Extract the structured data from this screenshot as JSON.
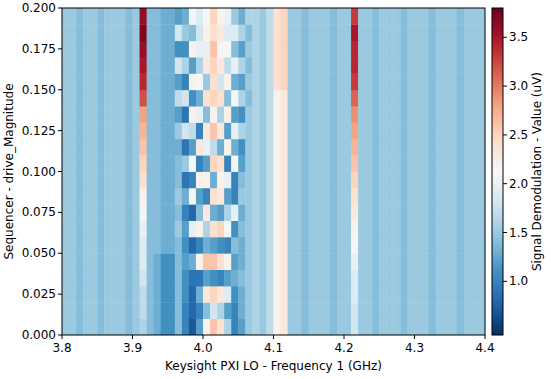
{
  "chart_data": {
    "type": "heatmap",
    "x_label": "Keysight PXI LO - Frequency 1 (GHz)",
    "y_label": "Sequencer - drive_Magnitude",
    "xlim": [
      3.8,
      4.4
    ],
    "ylim": [
      0,
      0.2
    ],
    "xticks": [
      3.8,
      3.9,
      {
        "value": 4,
        "label": "4.0"
      },
      4.1,
      4.2,
      4.3,
      4.4
    ],
    "yticks": [
      {
        "value": 0,
        "label": "0.000"
      },
      {
        "value": 0.025,
        "label": "0.025"
      },
      {
        "value": 0.05,
        "label": "0.050"
      },
      {
        "value": 0.075,
        "label": "0.075"
      },
      {
        "value": 0.1,
        "label": "0.100"
      },
      {
        "value": 0.125,
        "label": "0.125"
      },
      {
        "value": 0.15,
        "label": "0.150"
      },
      {
        "value": 0.175,
        "label": "0.175"
      },
      {
        "value": 0.2,
        "label": "0.200"
      }
    ],
    "x": [
      3.805,
      3.815,
      3.825,
      3.835,
      3.845,
      3.855,
      3.865,
      3.875,
      3.885,
      3.895,
      3.905,
      3.915,
      3.925,
      3.935,
      3.945,
      3.955,
      3.965,
      3.975,
      3.985,
      3.995,
      4.005,
      4.015,
      4.025,
      4.035,
      4.045,
      4.055,
      4.065,
      4.075,
      4.085,
      4.095,
      4.105,
      4.115,
      4.125,
      4.135,
      4.145,
      4.155,
      4.165,
      4.175,
      4.185,
      4.195,
      4.205,
      4.215,
      4.225,
      4.235,
      4.245,
      4.255,
      4.265,
      4.275,
      4.285,
      4.295,
      4.305,
      4.315,
      4.325,
      4.335,
      4.345,
      4.355,
      4.365,
      4.375,
      4.385,
      4.395
    ],
    "y": [
      0.005,
      0.015,
      0.025,
      0.035,
      0.045,
      0.055,
      0.065,
      0.075,
      0.085,
      0.095,
      0.105,
      0.115,
      0.125,
      0.135,
      0.145,
      0.155,
      0.165,
      0.175,
      0.185,
      0.195
    ],
    "values": [
      [
        1.5,
        1.5,
        1.4,
        1.5,
        1.5,
        1.4,
        1.5,
        1.5,
        1.5,
        1.4,
        1.5,
        1.6,
        1.4,
        1.3,
        1.1,
        1.1,
        1.4,
        1.0,
        0.7,
        1.2,
        2.2,
        2.6,
        2.4,
        1.6,
        1.0,
        1.2,
        1.5,
        1.6,
        1.5,
        1.7,
        2.2,
        2.3,
        1.5,
        1.5,
        1.4,
        1.5,
        1.5,
        1.5,
        1.4,
        1.5,
        1.5,
        1.8,
        1.5,
        1.5,
        1.4,
        1.5,
        1.5,
        1.5,
        1.4,
        1.5,
        1.5,
        1.5,
        1.4,
        1.5,
        1.5,
        1.5,
        1.4,
        1.5,
        1.5,
        1.5
      ],
      [
        1.5,
        1.5,
        1.4,
        1.5,
        1.5,
        1.4,
        1.5,
        1.5,
        1.5,
        1.4,
        1.5,
        1.7,
        1.4,
        1.3,
        1.1,
        1.1,
        1.4,
        1.0,
        0.8,
        1.0,
        1.4,
        1.8,
        1.6,
        1.2,
        1.0,
        1.3,
        1.5,
        1.6,
        1.5,
        1.7,
        2.2,
        2.3,
        1.5,
        1.5,
        1.4,
        1.5,
        1.5,
        1.5,
        1.4,
        1.5,
        1.5,
        1.8,
        1.5,
        1.5,
        1.4,
        1.5,
        1.5,
        1.5,
        1.4,
        1.5,
        1.5,
        1.5,
        1.4,
        1.5,
        1.5,
        1.5,
        1.4,
        1.5,
        1.5,
        1.5
      ],
      [
        1.5,
        1.5,
        1.4,
        1.5,
        1.5,
        1.4,
        1.5,
        1.5,
        1.5,
        1.4,
        1.5,
        1.7,
        1.4,
        1.3,
        1.1,
        1.1,
        1.4,
        1.1,
        0.8,
        1.3,
        2.3,
        2.5,
        2.3,
        1.9,
        1.1,
        1.3,
        1.5,
        1.6,
        1.5,
        1.7,
        2.2,
        2.3,
        1.5,
        1.5,
        1.4,
        1.5,
        1.5,
        1.5,
        1.4,
        1.5,
        1.5,
        1.9,
        1.5,
        1.5,
        1.4,
        1.5,
        1.5,
        1.5,
        1.4,
        1.5,
        1.5,
        1.5,
        1.4,
        1.5,
        1.5,
        1.5,
        1.4,
        1.5,
        1.5,
        1.5
      ],
      [
        1.5,
        1.5,
        1.4,
        1.5,
        1.5,
        1.4,
        1.5,
        1.5,
        1.5,
        1.4,
        1.5,
        1.8,
        1.4,
        1.3,
        1.1,
        1.1,
        1.4,
        1.1,
        0.9,
        0.9,
        1.2,
        1.1,
        1.0,
        1.2,
        1.3,
        1.4,
        1.5,
        1.6,
        1.5,
        1.7,
        2.2,
        2.3,
        1.5,
        1.5,
        1.4,
        1.5,
        1.5,
        1.5,
        1.4,
        1.5,
        1.5,
        1.9,
        1.5,
        1.5,
        1.4,
        1.5,
        1.5,
        1.5,
        1.4,
        1.5,
        1.5,
        1.5,
        1.4,
        1.5,
        1.5,
        1.5,
        1.4,
        1.5,
        1.5,
        1.5
      ],
      [
        1.5,
        1.5,
        1.4,
        1.5,
        1.5,
        1.4,
        1.5,
        1.5,
        1.5,
        1.4,
        1.5,
        1.9,
        1.4,
        1.3,
        1.1,
        1.1,
        1.4,
        1.2,
        1.3,
        2.2,
        2.6,
        2.6,
        2.4,
        2.2,
        1.2,
        1.3,
        1.5,
        1.6,
        1.5,
        1.7,
        2.2,
        2.3,
        1.5,
        1.5,
        1.4,
        1.5,
        1.5,
        1.5,
        1.4,
        1.5,
        1.5,
        2.0,
        1.5,
        1.5,
        1.4,
        1.5,
        1.5,
        1.5,
        1.4,
        1.5,
        1.5,
        1.5,
        1.4,
        1.5,
        1.5,
        1.5,
        1.4,
        1.5,
        1.5,
        1.5
      ],
      [
        1.5,
        1.5,
        1.4,
        1.5,
        1.5,
        1.4,
        1.5,
        1.5,
        1.5,
        1.4,
        1.5,
        1.9,
        1.4,
        1.4,
        1.3,
        1.3,
        1.4,
        1.1,
        0.8,
        1.0,
        1.3,
        1.2,
        1.1,
        1.0,
        1.4,
        1.3,
        1.5,
        1.6,
        1.5,
        1.7,
        2.2,
        2.3,
        1.5,
        1.5,
        1.4,
        1.5,
        1.5,
        1.5,
        1.4,
        1.5,
        1.5,
        2.1,
        1.5,
        1.5,
        1.4,
        1.5,
        1.5,
        1.5,
        1.4,
        1.5,
        1.5,
        1.5,
        1.4,
        1.5,
        1.5,
        1.5,
        1.4,
        1.5,
        1.5,
        1.5
      ],
      [
        1.5,
        1.5,
        1.4,
        1.5,
        1.5,
        1.4,
        1.5,
        1.5,
        1.5,
        1.4,
        1.5,
        2.0,
        1.4,
        1.4,
        1.3,
        1.3,
        1.5,
        1.2,
        2.0,
        2.2,
        1.6,
        2.4,
        2.5,
        2.1,
        1.1,
        1.4,
        1.5,
        1.6,
        1.5,
        1.7,
        2.2,
        2.3,
        1.5,
        1.5,
        1.4,
        1.5,
        1.5,
        1.5,
        1.4,
        1.5,
        1.5,
        2.2,
        1.5,
        1.5,
        1.4,
        1.5,
        1.5,
        1.5,
        1.4,
        1.5,
        1.5,
        1.5,
        1.4,
        1.5,
        1.5,
        1.5,
        1.4,
        1.5,
        1.5,
        1.5
      ],
      [
        1.5,
        1.5,
        1.4,
        1.5,
        1.5,
        1.4,
        1.5,
        1.5,
        1.5,
        1.4,
        1.5,
        2.1,
        1.4,
        1.4,
        1.3,
        1.3,
        1.4,
        1.0,
        0.8,
        1.4,
        2.3,
        1.3,
        1.2,
        1.6,
        2.0,
        1.3,
        1.5,
        1.6,
        1.5,
        1.7,
        2.2,
        2.3,
        1.5,
        1.5,
        1.4,
        1.5,
        1.5,
        1.5,
        1.4,
        1.5,
        1.5,
        2.3,
        1.5,
        1.5,
        1.4,
        1.5,
        1.5,
        1.5,
        1.4,
        1.5,
        1.5,
        1.5,
        1.4,
        1.5,
        1.5,
        1.5,
        1.4,
        1.5,
        1.5,
        1.5
      ],
      [
        1.5,
        1.5,
        1.4,
        1.5,
        1.5,
        1.4,
        1.5,
        1.5,
        1.5,
        1.4,
        1.5,
        2.2,
        1.4,
        1.4,
        1.3,
        1.3,
        1.5,
        1.3,
        2.1,
        1.2,
        1.0,
        2.4,
        2.3,
        1.2,
        1.0,
        1.5,
        1.5,
        1.6,
        1.5,
        1.7,
        2.2,
        2.3,
        1.5,
        1.5,
        1.4,
        1.5,
        1.5,
        1.5,
        1.4,
        1.5,
        1.5,
        2.4,
        1.5,
        1.5,
        1.4,
        1.5,
        1.5,
        1.5,
        1.4,
        1.5,
        1.5,
        1.5,
        1.4,
        1.5,
        1.5,
        1.5,
        1.4,
        1.5,
        1.5,
        1.5
      ],
      [
        1.5,
        1.5,
        1.4,
        1.5,
        1.5,
        1.4,
        1.5,
        1.5,
        1.5,
        1.4,
        1.5,
        2.4,
        1.4,
        1.4,
        1.3,
        1.3,
        1.4,
        0.9,
        1.0,
        2.2,
        2.2,
        1.3,
        2.2,
        2.0,
        1.0,
        1.4,
        1.5,
        1.6,
        1.5,
        1.7,
        2.2,
        2.3,
        1.5,
        1.5,
        1.4,
        1.5,
        1.5,
        1.5,
        1.4,
        1.5,
        1.5,
        2.5,
        1.5,
        1.5,
        1.4,
        1.5,
        1.5,
        1.5,
        1.4,
        1.5,
        1.5,
        1.5,
        1.4,
        1.5,
        1.5,
        1.5,
        1.4,
        1.5,
        1.5,
        1.5
      ],
      [
        1.5,
        1.5,
        1.4,
        1.5,
        1.5,
        1.4,
        1.5,
        1.5,
        1.5,
        1.4,
        1.5,
        2.5,
        1.4,
        1.4,
        1.3,
        1.3,
        1.4,
        1.5,
        2.1,
        1.0,
        1.2,
        2.5,
        2.4,
        1.0,
        2.1,
        1.2,
        1.5,
        1.6,
        1.5,
        1.7,
        2.2,
        2.3,
        1.5,
        1.5,
        1.4,
        1.5,
        1.5,
        1.5,
        1.4,
        1.5,
        1.5,
        2.6,
        1.5,
        1.5,
        1.4,
        1.5,
        1.5,
        1.5,
        1.4,
        1.5,
        1.5,
        1.5,
        1.4,
        1.5,
        1.5,
        1.5,
        1.4,
        1.5,
        1.5,
        1.5
      ],
      [
        1.5,
        1.5,
        1.4,
        1.5,
        1.5,
        1.4,
        1.5,
        1.5,
        1.5,
        1.4,
        1.5,
        2.6,
        1.4,
        1.4,
        1.3,
        1.3,
        1.3,
        0.9,
        1.2,
        2.3,
        2.0,
        1.7,
        1.3,
        2.2,
        1.3,
        1.1,
        1.5,
        1.6,
        1.5,
        1.7,
        2.2,
        2.3,
        1.5,
        1.5,
        1.4,
        1.5,
        1.5,
        1.5,
        1.4,
        1.5,
        1.5,
        2.7,
        1.5,
        1.5,
        1.4,
        1.5,
        1.5,
        1.5,
        1.4,
        1.5,
        1.5,
        1.5,
        1.4,
        1.5,
        1.5,
        1.5,
        1.4,
        1.5,
        1.5,
        1.5
      ],
      [
        1.5,
        1.5,
        1.4,
        1.5,
        1.5,
        1.4,
        1.5,
        1.5,
        1.5,
        1.4,
        1.5,
        2.7,
        1.4,
        1.4,
        1.3,
        1.3,
        1.5,
        1.8,
        1.7,
        1.0,
        2.3,
        2.6,
        2.3,
        1.2,
        2.0,
        1.6,
        1.5,
        1.6,
        1.5,
        1.7,
        2.2,
        2.3,
        1.5,
        1.5,
        1.4,
        1.5,
        1.5,
        1.5,
        1.4,
        1.5,
        1.5,
        2.8,
        1.5,
        1.5,
        1.4,
        1.5,
        1.5,
        1.5,
        1.4,
        1.5,
        1.5,
        1.5,
        1.4,
        1.5,
        1.5,
        1.5,
        1.4,
        1.5,
        1.5,
        1.5
      ],
      [
        1.5,
        1.5,
        1.4,
        1.5,
        1.5,
        1.4,
        1.5,
        1.5,
        1.5,
        1.4,
        1.5,
        2.8,
        1.4,
        1.4,
        1.3,
        1.3,
        1.2,
        0.9,
        2.2,
        2.0,
        1.4,
        2.2,
        1.6,
        2.2,
        1.2,
        1.1,
        1.5,
        1.6,
        1.5,
        1.7,
        2.2,
        2.3,
        1.5,
        1.5,
        1.4,
        1.5,
        1.5,
        1.5,
        1.4,
        1.5,
        1.5,
        2.9,
        1.5,
        1.5,
        1.4,
        1.5,
        1.5,
        1.5,
        1.4,
        1.5,
        1.5,
        1.5,
        1.4,
        1.5,
        1.5,
        1.5,
        1.4,
        1.5,
        1.5,
        1.5
      ],
      [
        1.5,
        1.5,
        1.4,
        1.5,
        1.5,
        1.4,
        1.5,
        1.5,
        1.5,
        1.4,
        1.5,
        3.2,
        1.4,
        1.4,
        1.3,
        1.3,
        1.7,
        1.8,
        1.1,
        1.3,
        2.4,
        2.5,
        2.4,
        1.4,
        2.1,
        1.6,
        1.4,
        1.6,
        1.5,
        1.7,
        2.2,
        2.3,
        1.5,
        1.5,
        1.4,
        1.5,
        1.5,
        1.5,
        1.4,
        1.5,
        1.5,
        3.1,
        1.5,
        1.5,
        1.4,
        1.5,
        1.5,
        1.5,
        1.4,
        1.5,
        1.5,
        1.5,
        1.4,
        1.5,
        1.5,
        1.5,
        1.4,
        1.5,
        1.5,
        1.5
      ],
      [
        1.5,
        1.5,
        1.4,
        1.5,
        1.5,
        1.4,
        1.5,
        1.5,
        1.5,
        1.4,
        1.5,
        3.4,
        1.4,
        1.4,
        1.3,
        1.3,
        1.2,
        1.0,
        2.2,
        2.1,
        1.5,
        2.4,
        1.8,
        2.2,
        1.3,
        1.2,
        1.5,
        1.6,
        1.5,
        1.7,
        2.4,
        2.5,
        1.5,
        1.5,
        1.4,
        1.5,
        1.5,
        1.5,
        1.4,
        1.5,
        1.5,
        3.3,
        1.5,
        1.5,
        1.4,
        1.5,
        1.5,
        1.5,
        1.4,
        1.5,
        1.5,
        1.5,
        1.4,
        1.5,
        1.5,
        1.5,
        1.4,
        1.5,
        1.5,
        1.5
      ],
      [
        1.5,
        1.5,
        1.4,
        1.5,
        1.5,
        1.4,
        1.5,
        1.5,
        1.5,
        1.4,
        1.5,
        3.5,
        1.4,
        1.4,
        1.3,
        1.3,
        1.8,
        1.6,
        1.2,
        1.6,
        2.3,
        2.5,
        2.3,
        1.7,
        2.0,
        1.6,
        1.4,
        1.6,
        1.5,
        1.7,
        2.4,
        2.5,
        1.5,
        1.5,
        1.4,
        1.5,
        1.5,
        1.5,
        1.4,
        1.5,
        1.5,
        3.4,
        1.5,
        1.5,
        1.4,
        1.5,
        1.5,
        1.5,
        1.4,
        1.5,
        1.5,
        1.5,
        1.4,
        1.5,
        1.5,
        1.5,
        1.4,
        1.5,
        1.5,
        1.5
      ],
      [
        1.5,
        1.5,
        1.4,
        1.5,
        1.5,
        1.4,
        1.5,
        1.5,
        1.5,
        1.4,
        1.5,
        3.6,
        1.4,
        1.4,
        1.3,
        1.3,
        1.1,
        1.1,
        2.2,
        2.0,
        2.0,
        2.6,
        2.1,
        2.1,
        1.4,
        1.2,
        1.5,
        1.6,
        1.5,
        1.7,
        2.4,
        2.5,
        1.5,
        1.5,
        1.4,
        1.5,
        1.5,
        1.5,
        1.4,
        1.5,
        1.5,
        3.4,
        1.5,
        1.5,
        1.4,
        1.5,
        1.5,
        1.5,
        1.4,
        1.5,
        1.5,
        1.5,
        1.4,
        1.5,
        1.5,
        1.5,
        1.4,
        1.5,
        1.5,
        1.5
      ],
      [
        1.5,
        1.5,
        1.4,
        1.5,
        1.5,
        1.4,
        1.5,
        1.5,
        1.5,
        1.4,
        1.5,
        3.7,
        1.4,
        1.4,
        1.3,
        1.3,
        1.8,
        1.5,
        1.4,
        1.8,
        2.2,
        2.4,
        2.3,
        1.9,
        1.9,
        1.6,
        1.4,
        1.6,
        1.5,
        1.7,
        2.4,
        2.5,
        1.5,
        1.5,
        1.4,
        1.5,
        1.5,
        1.5,
        1.4,
        1.5,
        1.5,
        3.5,
        1.5,
        1.5,
        1.4,
        1.5,
        1.5,
        1.5,
        1.4,
        1.5,
        1.5,
        1.5,
        1.4,
        1.5,
        1.5,
        1.5,
        1.4,
        1.5,
        1.5,
        1.5
      ],
      [
        1.5,
        1.5,
        1.4,
        1.5,
        1.5,
        1.4,
        1.5,
        1.5,
        1.5,
        1.4,
        1.5,
        3.6,
        1.4,
        1.4,
        1.3,
        1.3,
        1.2,
        1.3,
        2.1,
        1.9,
        2.1,
        2.5,
        2.2,
        2.0,
        1.5,
        1.3,
        1.6,
        1.6,
        1.5,
        1.7,
        2.4,
        2.5,
        1.5,
        1.5,
        1.4,
        1.5,
        1.5,
        1.5,
        1.4,
        1.5,
        1.5,
        3.3,
        1.5,
        1.5,
        1.4,
        1.5,
        1.5,
        1.5,
        1.4,
        1.5,
        1.5,
        1.5,
        1.4,
        1.5,
        1.5,
        1.5,
        1.4,
        1.5,
        1.5,
        1.5
      ]
    ],
    "colorbar": {
      "label": "Signal Demodulation - Value (uV)",
      "range": [
        0.45,
        3.8
      ],
      "ticks": [
        {
          "value": 1,
          "label": "1.0"
        },
        1.5,
        {
          "value": 2,
          "label": "2.0"
        },
        2.5,
        {
          "value": 3,
          "label": "3.0"
        },
        3.5
      ]
    }
  }
}
